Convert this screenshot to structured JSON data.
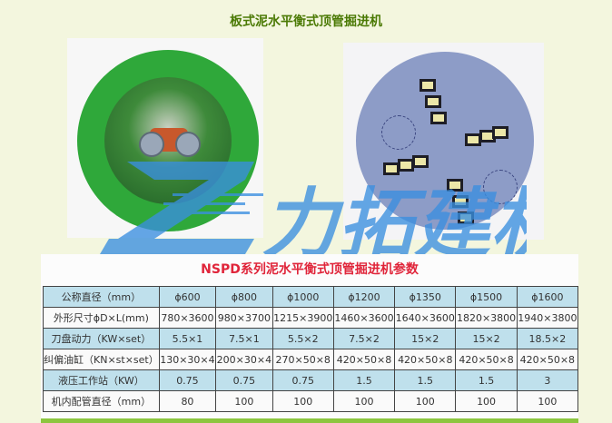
{
  "page_title": "板式泥水平衡式顶管掘进机",
  "watermark_logo_text": "力拓建机",
  "colors": {
    "title": "#4b7a05",
    "table_title": "#e0253a",
    "row_highlight": "#bfe0ec",
    "background": "#f3f6de",
    "logo": "#3a8fe0"
  },
  "table": {
    "title": "NSPD系列泥水平衡式顶管掘进机参数",
    "rows": [
      {
        "label": "公称直径（mm）",
        "values": [
          "ϕ600",
          "ϕ800",
          "ϕ1000",
          "ϕ1200",
          "ϕ1350",
          "ϕ1500",
          "ϕ1600"
        ]
      },
      {
        "label": "外形尺寸ϕD×L(mm)",
        "values": [
          "780×3600",
          "980×3700",
          "1215×3900",
          "1460×3600",
          "1640×3600",
          "1820×3800",
          "1940×3800"
        ]
      },
      {
        "label": "刀盘动力（KW×set）",
        "values": [
          "5.5×1",
          "7.5×1",
          "5.5×2",
          "7.5×2",
          "15×2",
          "15×2",
          "18.5×2"
        ]
      },
      {
        "label": "纠偏油缸（KN×st×set）",
        "values": [
          "130×30×4",
          "200×30×4",
          "270×50×8",
          "420×50×8",
          "420×50×8",
          "420×50×8",
          "420×50×8"
        ]
      },
      {
        "label": "液压工作站（KW）",
        "values": [
          "0.75",
          "0.75",
          "0.75",
          "1.5",
          "1.5",
          "1.5",
          "3"
        ]
      },
      {
        "label": "机内配管直径（mm）",
        "values": [
          "80",
          "100",
          "100",
          "100",
          "100",
          "100",
          "100"
        ]
      }
    ]
  }
}
